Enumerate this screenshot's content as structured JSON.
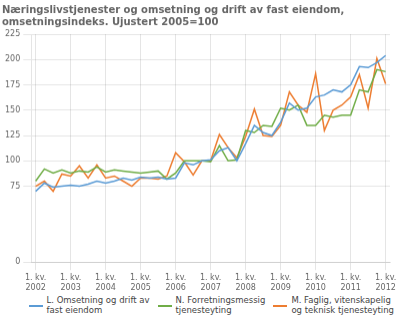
{
  "chart_data": {
    "type": "line",
    "title": "Næringslivstjenester og omsetning og drift av fast eiendom,\nomsetningsindeks. Ujustert 2005=100",
    "categories": [
      "1. kv.\n2002",
      null,
      null,
      null,
      "1. kv.\n2003",
      null,
      null,
      null,
      "1. kv.\n2004",
      null,
      null,
      null,
      "1. kv.\n2005",
      null,
      null,
      null,
      "1. kv.\n2006",
      null,
      null,
      null,
      "1. kv.\n2007",
      null,
      null,
      null,
      "1. kv.\n2008",
      null,
      null,
      null,
      "1. kv.\n2009",
      null,
      null,
      null,
      "1. kv.\n2010",
      null,
      null,
      null,
      "1. kv.\n2011",
      null,
      null,
      null,
      "1. kv.\n2012"
    ],
    "series": [
      {
        "name": "L. Omsetning og drift av\nfast eiendom",
        "color": "#5b9bd5",
        "values": [
          70,
          78,
          74,
          75,
          76,
          75,
          77,
          80,
          78,
          80,
          83,
          81,
          84,
          83,
          84,
          82,
          83,
          98,
          96,
          100,
          101,
          110,
          113,
          100,
          117,
          135,
          128,
          125,
          138,
          157,
          150,
          152,
          163,
          165,
          170,
          168,
          175,
          193,
          192,
          197,
          204
        ]
      },
      {
        "name": "N. Forretningsmessig\ntjenesteyting",
        "color": "#70ad47",
        "values": [
          80,
          92,
          88,
          91,
          88,
          90,
          89,
          94,
          89,
          91,
          90,
          89,
          88,
          89,
          90,
          82,
          88,
          100,
          100,
          100,
          99,
          115,
          100,
          101,
          130,
          128,
          135,
          134,
          152,
          150,
          155,
          135,
          135,
          145,
          143,
          145,
          145,
          170,
          168,
          190,
          188
        ]
      },
      {
        "name": "M. Faglig, vitenskapelig\nog teknisk tjenesteyting",
        "color": "#ed7d31",
        "values": [
          75,
          80,
          70,
          87,
          85,
          95,
          83,
          96,
          83,
          85,
          80,
          75,
          83,
          83,
          82,
          85,
          108,
          99,
          86,
          100,
          100,
          126,
          113,
          103,
          124,
          151,
          125,
          124,
          135,
          168,
          155,
          148,
          186,
          130,
          150,
          155,
          163,
          185,
          152,
          201,
          176
        ]
      }
    ],
    "ylim": [
      0,
      225
    ],
    "yticks": [
      0,
      75,
      100,
      125,
      150,
      175,
      200,
      225
    ],
    "grid": true,
    "legend": "lower right"
  }
}
